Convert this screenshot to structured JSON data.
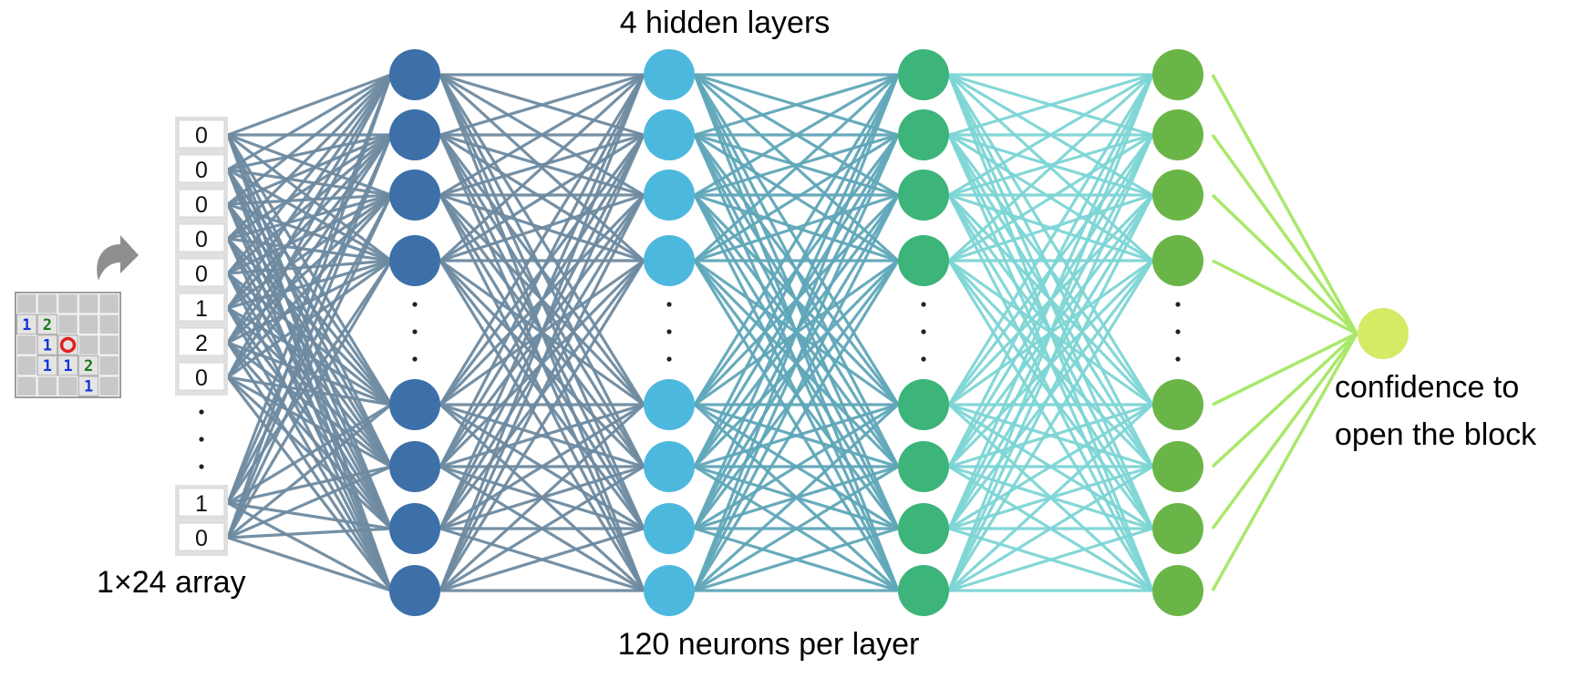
{
  "title_top": "4 hidden layers",
  "title_bottom": "120 neurons per layer",
  "input_label": "1×24 array",
  "output_label_line1": "confidence to",
  "output_label_line2": "open the block",
  "input_array": {
    "top_values": [
      "0",
      "0",
      "0",
      "0",
      "0",
      "1",
      "2",
      "0"
    ],
    "bottom_values": [
      "1",
      "0"
    ]
  },
  "minesweeper": {
    "rows": [
      [
        "",
        "",
        "",
        "",
        ""
      ],
      [
        "1",
        "2",
        "",
        "",
        ""
      ],
      [
        "",
        "1",
        "O",
        "",
        ""
      ],
      [
        "",
        "1",
        "1",
        "2",
        ""
      ],
      [
        "",
        "",
        "",
        "1",
        ""
      ]
    ]
  },
  "layers": [
    {
      "name": "hidden-layer-1",
      "color": "#3D6FA8",
      "edge_color": "#6E8AA0"
    },
    {
      "name": "hidden-layer-2",
      "color": "#4DB8DE",
      "edge_color": "#5FA6B8"
    },
    {
      "name": "hidden-layer-3",
      "color": "#3DB47A",
      "edge_color": "#7DD5D5"
    },
    {
      "name": "hidden-layer-4",
      "color": "#6AB547",
      "edge_color": "#62C3A3"
    }
  ],
  "output_neuron_color": "#D4EB66",
  "output_edge_color": "#A9E86A",
  "input_edge_color": "#6E8AA0",
  "colors": {
    "num_blue": "#1536D6",
    "num_green": "#1B7A1B",
    "mine_marker": "#E02020",
    "arrow": "#8E8E8E",
    "array_bg": "#E0E0E0",
    "grid_cell": "#BDBDBD"
  }
}
